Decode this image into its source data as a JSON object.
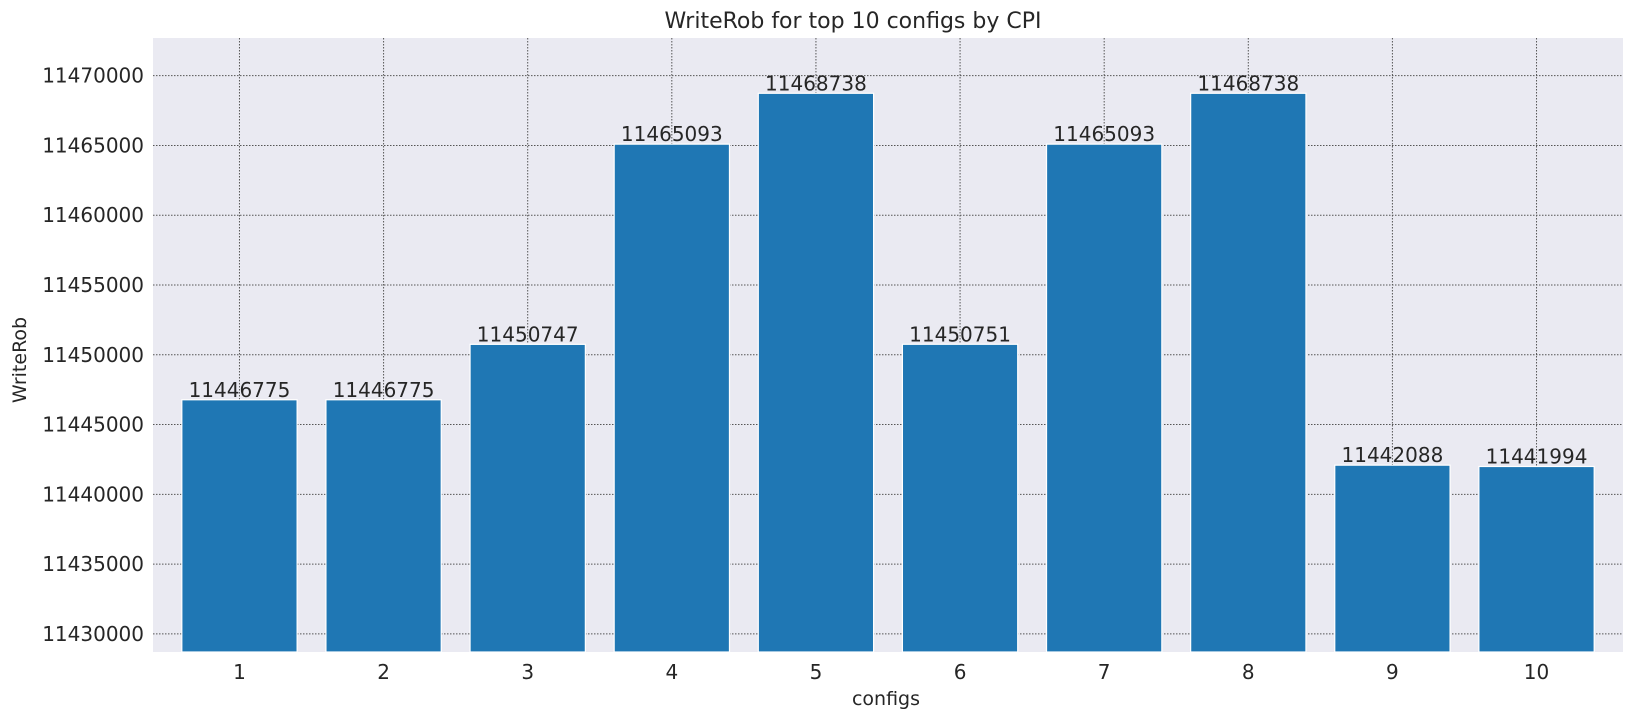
{
  "chart_data": {
    "type": "bar",
    "title": "WriteRob for top 10 configs by CPI",
    "xlabel": "configs",
    "ylabel": "WriteRob",
    "categories": [
      "1",
      "2",
      "3",
      "4",
      "5",
      "6",
      "7",
      "8",
      "9",
      "10"
    ],
    "values": [
      11446775,
      11446775,
      11450747,
      11465093,
      11468738,
      11450751,
      11465093,
      11468738,
      11442088,
      11441994
    ],
    "data_labels": [
      "11446775",
      "11446775",
      "11450747",
      "11465093",
      "11468738",
      "11450751",
      "11465093",
      "11468738",
      "11442088",
      "11441994"
    ],
    "ylim": [
      11428700,
      11472700
    ],
    "yticks": [
      11430000,
      11435000,
      11440000,
      11445000,
      11450000,
      11455000,
      11460000,
      11465000,
      11470000
    ],
    "ytick_labels": [
      "11430000",
      "11435000",
      "11440000",
      "11445000",
      "11450000",
      "11455000",
      "11460000",
      "11465000",
      "11470000"
    ],
    "grid": true,
    "bar_color": "#1f77b4",
    "background_color": "#eaeaf2",
    "grid_color": "#555555"
  }
}
